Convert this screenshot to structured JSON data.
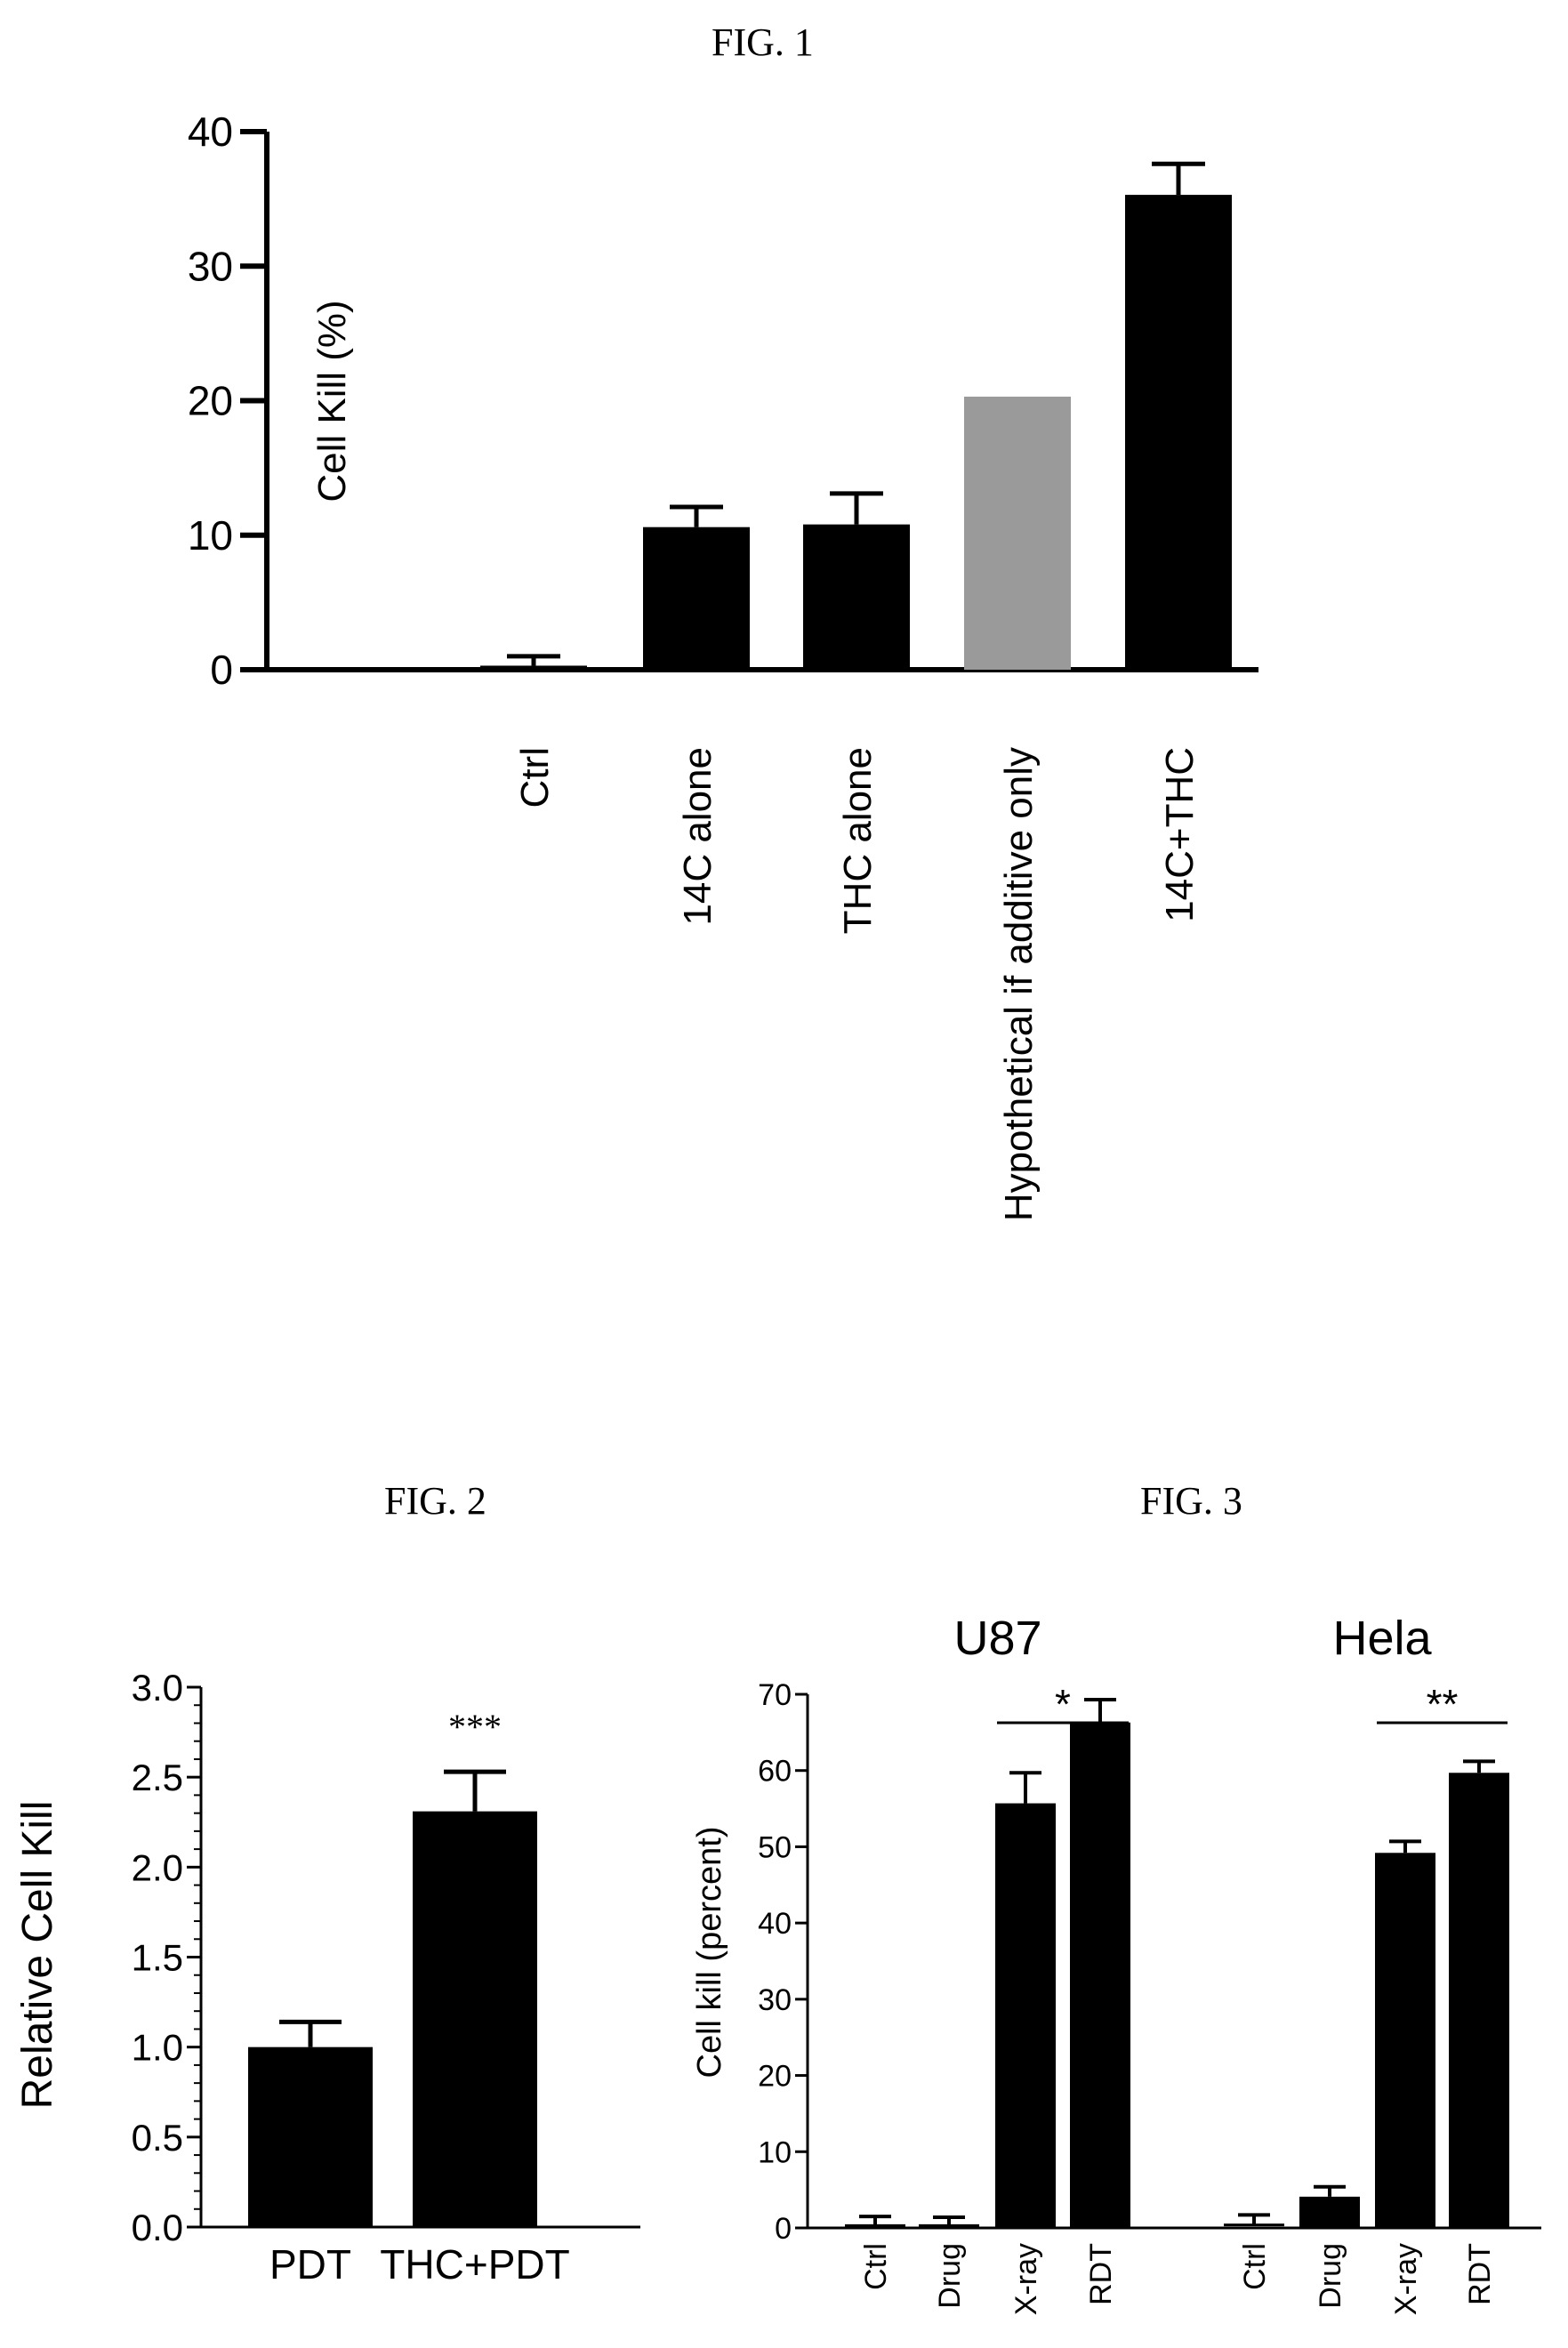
{
  "figures": [
    {
      "figure_label": "FIG. 1",
      "chart_data": {
        "type": "bar",
        "categories": [
          "Ctrl",
          "14C alone",
          "THC alone",
          "Hypothetical if additive only",
          "14C+THC"
        ],
        "values": [
          0.3,
          10.6,
          10.8,
          20.3,
          35.3
        ],
        "errors": [
          0.7,
          1.5,
          2.3,
          0,
          2.3
        ],
        "bar_colors": [
          "#000000",
          "#000000",
          "#000000",
          "#9a9a9a",
          "#000000"
        ],
        "ylabel": "Cell Kill (%)",
        "xlabel": "",
        "ylim": [
          0,
          40
        ],
        "yticks": [
          0,
          10,
          20,
          30,
          40
        ],
        "grid": false
      }
    },
    {
      "figure_label": "FIG. 2",
      "chart_data": {
        "type": "bar",
        "categories": [
          "PDT",
          "THC+PDT"
        ],
        "values": [
          1.0,
          2.31
        ],
        "errors": [
          0.14,
          0.22
        ],
        "bar_colors": [
          "#000000",
          "#000000"
        ],
        "ylabel": "Relative Cell Kill",
        "xlabel": "",
        "ylim": [
          0,
          3.0
        ],
        "yticks": [
          0.0,
          0.5,
          1.0,
          1.5,
          2.0,
          2.5,
          3.0
        ],
        "annotations": [
          {
            "text": "***",
            "category": "THC+PDT"
          }
        ],
        "grid": false
      }
    },
    {
      "figure_label": "FIG. 3",
      "chart_data": {
        "type": "bar",
        "groups": [
          {
            "name": "U87",
            "categories": [
              "Ctrl",
              "Drug",
              "X-ray",
              "RDT"
            ],
            "values": [
              0.3,
              0.3,
              55.7,
              66.3
            ],
            "errors": [
              1.2,
              1.1,
              4.0,
              3.0
            ],
            "significance": {
              "text": "*",
              "between": [
                "X-ray",
                "RDT"
              ]
            }
          },
          {
            "name": "Hela",
            "categories": [
              "Ctrl",
              "Drug",
              "X-ray",
              "RDT"
            ],
            "values": [
              0.4,
              4.1,
              49.2,
              59.7
            ],
            "errors": [
              1.3,
              1.3,
              1.5,
              1.5
            ],
            "significance": {
              "text": "**",
              "between": [
                "X-ray",
                "RDT"
              ]
            }
          }
        ],
        "bar_colors": [
          "#000000"
        ],
        "ylabel": "Cell kill (percent)",
        "xlabel": "",
        "ylim": [
          0,
          70
        ],
        "yticks": [
          0,
          10,
          20,
          30,
          40,
          50,
          60,
          70
        ],
        "grid": false
      }
    }
  ]
}
